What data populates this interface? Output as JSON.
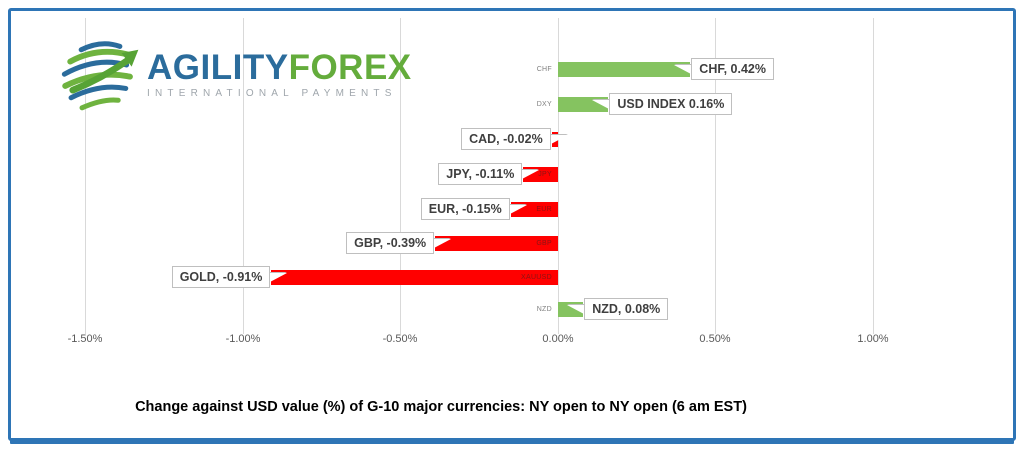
{
  "frame": {
    "border_color": "#2E75B6"
  },
  "logo": {
    "brand_primary": "AGILITY",
    "brand_secondary": "FOREX",
    "tagline": "INTERNATIONAL PAYMENTS",
    "primary_color": "#2B6C9C",
    "secondary_color": "#64AC3C",
    "tagline_color": "#9FA6AC",
    "icon": "globe-arrow-icon"
  },
  "chart_data": {
    "type": "bar",
    "orientation": "horizontal",
    "title": "Change against  USD value (%)  of  G-10 major currencies:  NY open to NY open  (6 am EST)",
    "categories": [
      "CHF",
      "DXY",
      "CAD",
      "JPY",
      "EUR",
      "GBP",
      "XAUUSD",
      "NZD"
    ],
    "values": [
      0.42,
      0.16,
      -0.02,
      -0.11,
      -0.15,
      -0.39,
      -0.91,
      0.08
    ],
    "data_labels": [
      "CHF, 0.42%",
      "USD INDEX 0.16%",
      "CAD, -0.02%",
      "JPY, -0.11%",
      "EUR, -0.15%",
      "GBP, -0.39%",
      "GOLD, -0.91%",
      "NZD, 0.08%"
    ],
    "x_axis": {
      "tick_labels": [
        "-1.50%",
        "-1.00%",
        "-0.50%",
        "0.00%",
        "0.50%",
        "1.00%"
      ],
      "tick_values": [
        -1.5,
        -1.0,
        -0.5,
        0.0,
        0.5,
        1.0
      ],
      "min": -1.5,
      "max": 1.0,
      "unit": "%"
    },
    "positive_color": "#85C360",
    "negative_color": "#FF0000",
    "positive_tick_color": "#808080",
    "negative_tick_color": "#8B1414",
    "gridline_color": "#D9D9D9",
    "gridlines": true,
    "legend": false
  }
}
